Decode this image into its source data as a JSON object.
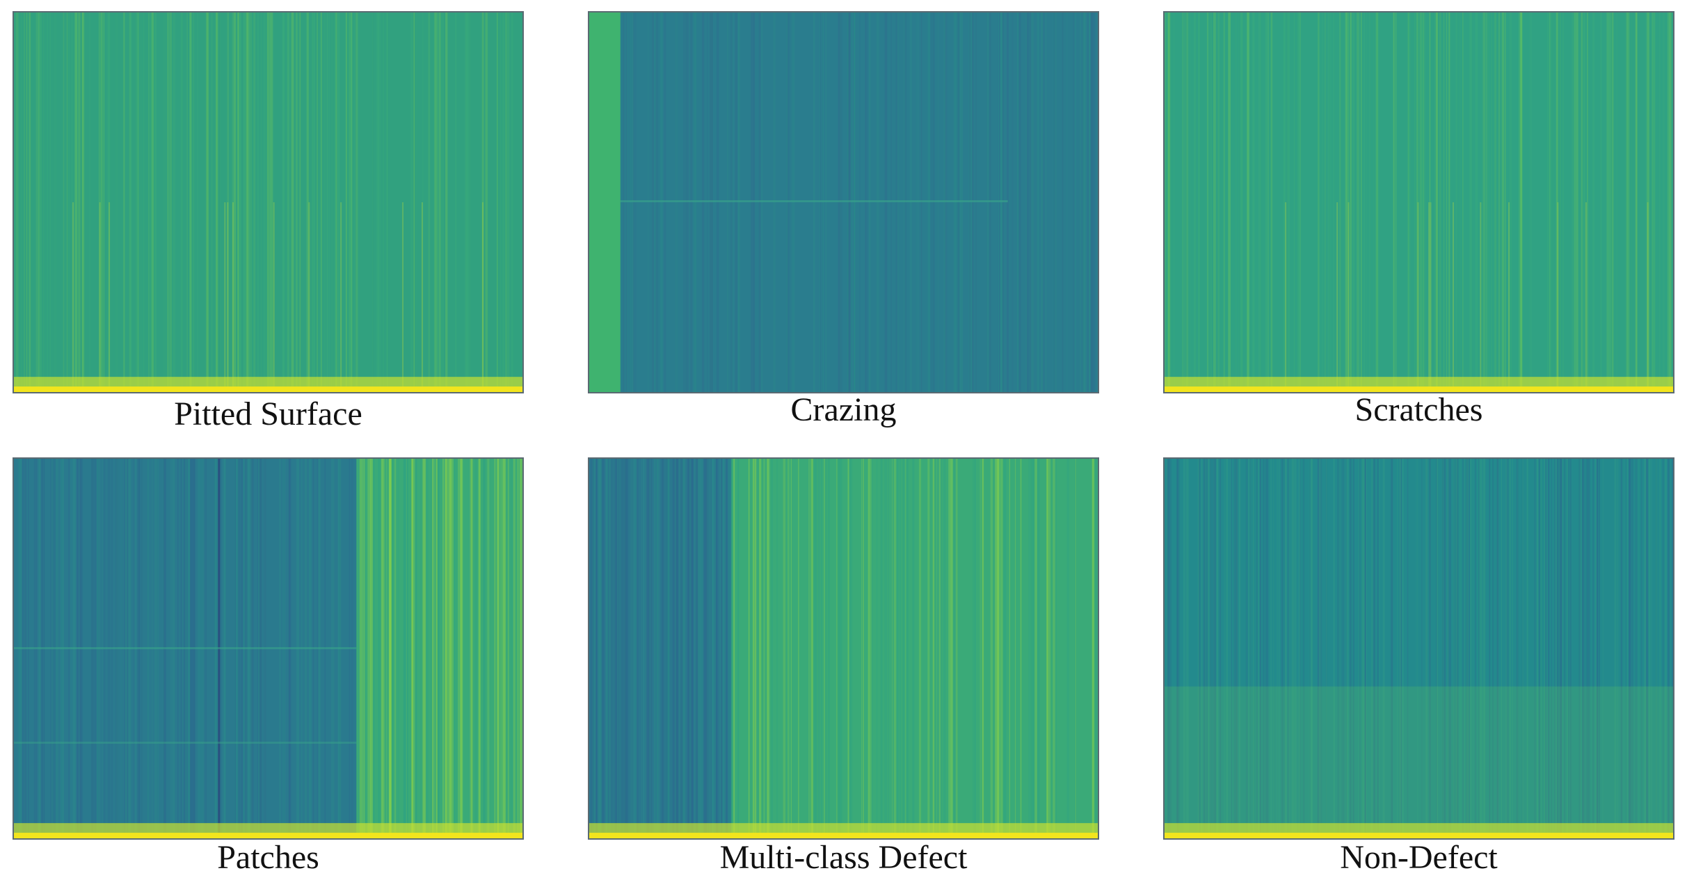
{
  "figure": {
    "panels": [
      {
        "label": "Pitted Surface",
        "base_color": "#31a17f",
        "style": "uniform-green",
        "bright_floor": true
      },
      {
        "label": "Crazing",
        "base_color": "#2a7d8e",
        "style": "dark-with-bright-left-strip",
        "bright_floor": false
      },
      {
        "label": "Scratches",
        "base_color": "#30a283",
        "style": "uniform-green",
        "bright_floor": true
      },
      {
        "label": "Patches",
        "base_color": "#2a7a8e",
        "style": "dark-left-bright-right",
        "bright_floor": true
      },
      {
        "label": "Multi-class Defect",
        "base_color": "#2a788e",
        "style": "dark-left-bright-right",
        "bright_floor": true
      },
      {
        "label": "Non-Defect",
        "base_color": "#238a8d",
        "style": "vertical-streaks",
        "bright_floor": true
      }
    ],
    "colormap": "viridis"
  }
}
